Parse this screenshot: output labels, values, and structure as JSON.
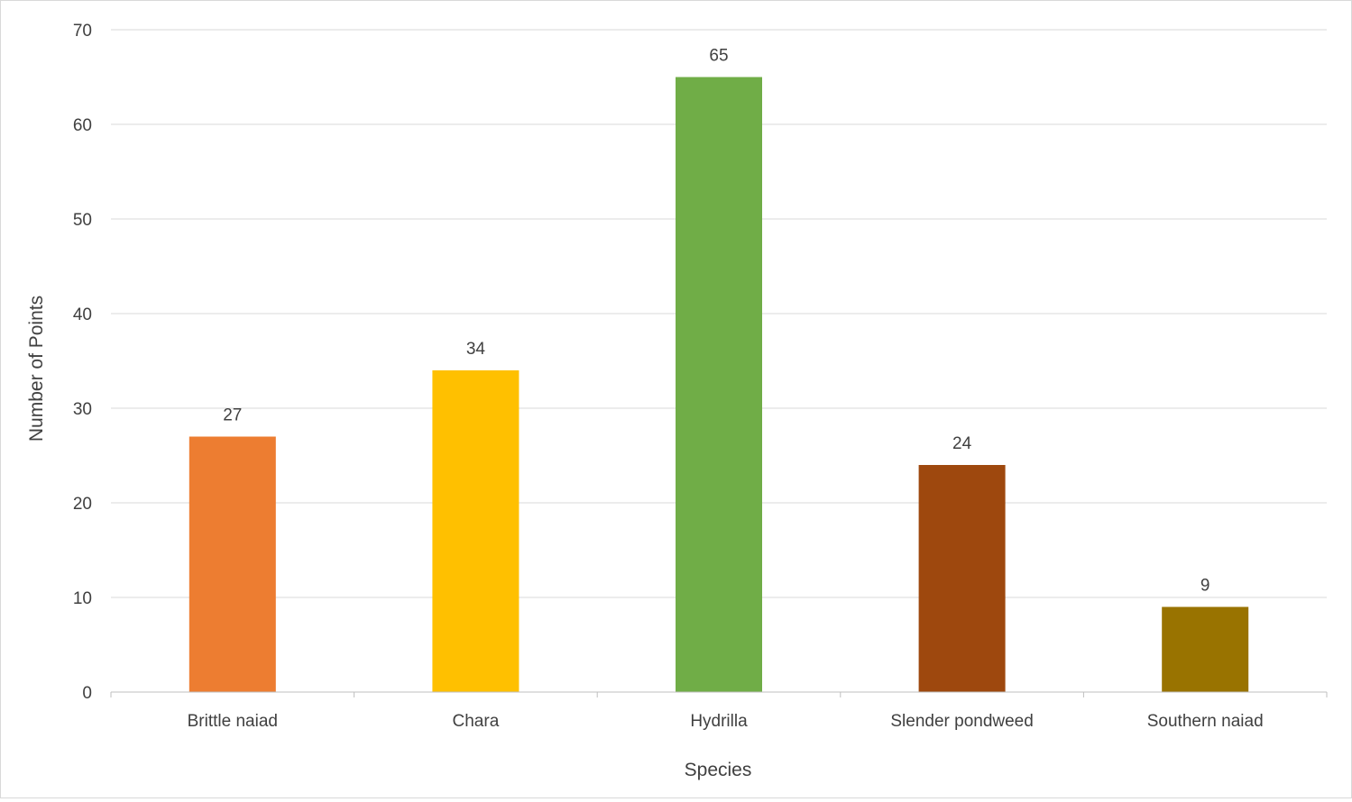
{
  "chart_data": {
    "type": "bar",
    "title": "",
    "xlabel": "Species",
    "ylabel": "Number of Points",
    "categories": [
      "Brittle naiad",
      "Chara",
      "Hydrilla",
      "Slender pondweed",
      "Southern naiad"
    ],
    "values": [
      27,
      34,
      65,
      24,
      9
    ],
    "data_labels": [
      "27",
      "34",
      "65",
      "24",
      "9"
    ],
    "colors": [
      "#ED7D31",
      "#FFC000",
      "#70AD47",
      "#9E480E",
      "#997300"
    ],
    "ylim": [
      0,
      70
    ],
    "yticks": [
      0,
      10,
      20,
      30,
      40,
      50,
      60,
      70
    ],
    "ytick_labels": [
      "0",
      "10",
      "20",
      "30",
      "40",
      "50",
      "60",
      "70"
    ],
    "grid": true,
    "legend": "none"
  }
}
